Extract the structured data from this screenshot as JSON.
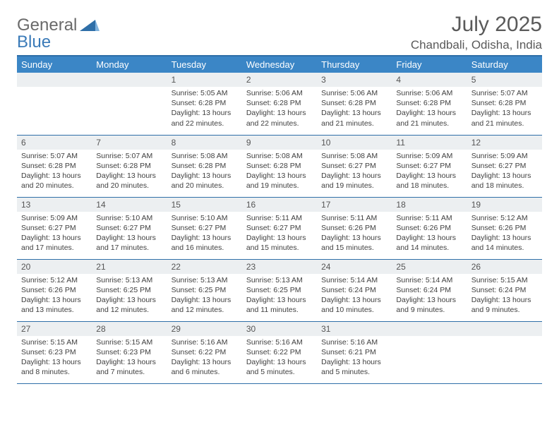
{
  "brand": {
    "name_a": "General",
    "name_b": "Blue"
  },
  "title": "July 2025",
  "location": "Chandbali, Odisha, India",
  "colors": {
    "header_bg": "#3b86c6",
    "rule": "#2f6fa8",
    "daynum_bg": "#eceff1",
    "text": "#404040"
  },
  "weekdays": [
    "Sunday",
    "Monday",
    "Tuesday",
    "Wednesday",
    "Thursday",
    "Friday",
    "Saturday"
  ],
  "weeks": [
    [
      null,
      null,
      {
        "n": "1",
        "sr": "5:05 AM",
        "ss": "6:28 PM",
        "dl": "13 hours and 22 minutes."
      },
      {
        "n": "2",
        "sr": "5:06 AM",
        "ss": "6:28 PM",
        "dl": "13 hours and 22 minutes."
      },
      {
        "n": "3",
        "sr": "5:06 AM",
        "ss": "6:28 PM",
        "dl": "13 hours and 21 minutes."
      },
      {
        "n": "4",
        "sr": "5:06 AM",
        "ss": "6:28 PM",
        "dl": "13 hours and 21 minutes."
      },
      {
        "n": "5",
        "sr": "5:07 AM",
        "ss": "6:28 PM",
        "dl": "13 hours and 21 minutes."
      }
    ],
    [
      {
        "n": "6",
        "sr": "5:07 AM",
        "ss": "6:28 PM",
        "dl": "13 hours and 20 minutes."
      },
      {
        "n": "7",
        "sr": "5:07 AM",
        "ss": "6:28 PM",
        "dl": "13 hours and 20 minutes."
      },
      {
        "n": "8",
        "sr": "5:08 AM",
        "ss": "6:28 PM",
        "dl": "13 hours and 20 minutes."
      },
      {
        "n": "9",
        "sr": "5:08 AM",
        "ss": "6:28 PM",
        "dl": "13 hours and 19 minutes."
      },
      {
        "n": "10",
        "sr": "5:08 AM",
        "ss": "6:27 PM",
        "dl": "13 hours and 19 minutes."
      },
      {
        "n": "11",
        "sr": "5:09 AM",
        "ss": "6:27 PM",
        "dl": "13 hours and 18 minutes."
      },
      {
        "n": "12",
        "sr": "5:09 AM",
        "ss": "6:27 PM",
        "dl": "13 hours and 18 minutes."
      }
    ],
    [
      {
        "n": "13",
        "sr": "5:09 AM",
        "ss": "6:27 PM",
        "dl": "13 hours and 17 minutes."
      },
      {
        "n": "14",
        "sr": "5:10 AM",
        "ss": "6:27 PM",
        "dl": "13 hours and 17 minutes."
      },
      {
        "n": "15",
        "sr": "5:10 AM",
        "ss": "6:27 PM",
        "dl": "13 hours and 16 minutes."
      },
      {
        "n": "16",
        "sr": "5:11 AM",
        "ss": "6:27 PM",
        "dl": "13 hours and 15 minutes."
      },
      {
        "n": "17",
        "sr": "5:11 AM",
        "ss": "6:26 PM",
        "dl": "13 hours and 15 minutes."
      },
      {
        "n": "18",
        "sr": "5:11 AM",
        "ss": "6:26 PM",
        "dl": "13 hours and 14 minutes."
      },
      {
        "n": "19",
        "sr": "5:12 AM",
        "ss": "6:26 PM",
        "dl": "13 hours and 14 minutes."
      }
    ],
    [
      {
        "n": "20",
        "sr": "5:12 AM",
        "ss": "6:26 PM",
        "dl": "13 hours and 13 minutes."
      },
      {
        "n": "21",
        "sr": "5:13 AM",
        "ss": "6:25 PM",
        "dl": "13 hours and 12 minutes."
      },
      {
        "n": "22",
        "sr": "5:13 AM",
        "ss": "6:25 PM",
        "dl": "13 hours and 12 minutes."
      },
      {
        "n": "23",
        "sr": "5:13 AM",
        "ss": "6:25 PM",
        "dl": "13 hours and 11 minutes."
      },
      {
        "n": "24",
        "sr": "5:14 AM",
        "ss": "6:24 PM",
        "dl": "13 hours and 10 minutes."
      },
      {
        "n": "25",
        "sr": "5:14 AM",
        "ss": "6:24 PM",
        "dl": "13 hours and 9 minutes."
      },
      {
        "n": "26",
        "sr": "5:15 AM",
        "ss": "6:24 PM",
        "dl": "13 hours and 9 minutes."
      }
    ],
    [
      {
        "n": "27",
        "sr": "5:15 AM",
        "ss": "6:23 PM",
        "dl": "13 hours and 8 minutes."
      },
      {
        "n": "28",
        "sr": "5:15 AM",
        "ss": "6:23 PM",
        "dl": "13 hours and 7 minutes."
      },
      {
        "n": "29",
        "sr": "5:16 AM",
        "ss": "6:22 PM",
        "dl": "13 hours and 6 minutes."
      },
      {
        "n": "30",
        "sr": "5:16 AM",
        "ss": "6:22 PM",
        "dl": "13 hours and 5 minutes."
      },
      {
        "n": "31",
        "sr": "5:16 AM",
        "ss": "6:21 PM",
        "dl": "13 hours and 5 minutes."
      },
      null,
      null
    ]
  ],
  "labels": {
    "sunrise": "Sunrise:",
    "sunset": "Sunset:",
    "daylight": "Daylight:"
  }
}
